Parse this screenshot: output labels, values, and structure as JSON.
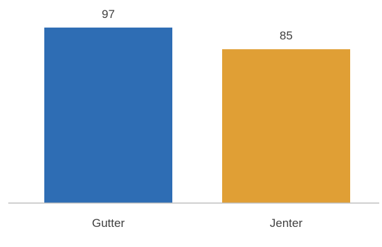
{
  "chart_data": {
    "type": "bar",
    "categories": [
      "Gutter",
      "Jenter"
    ],
    "values": [
      97,
      85
    ],
    "data_labels": [
      "97",
      "85"
    ],
    "colors": [
      "#2e6db4",
      "#e09f35"
    ],
    "title": "",
    "xlabel": "",
    "ylabel": "",
    "ylim": [
      0,
      100
    ],
    "grid": false,
    "legend": "none"
  }
}
